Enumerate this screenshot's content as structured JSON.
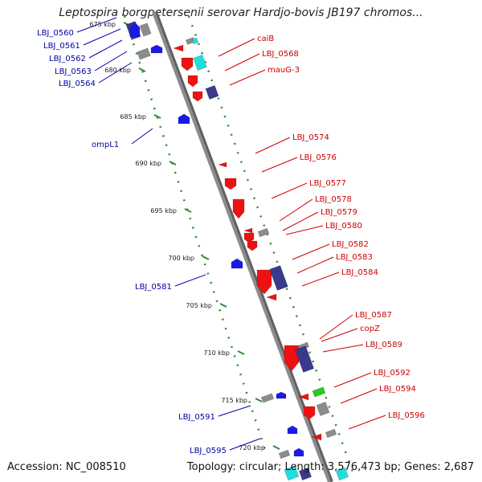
{
  "title": "Leptospira borgpetersenii serovar Hardjo-bovis JB197 chromos...",
  "footer": {
    "accession": "Accession: NC_008510",
    "summary": "Topology: circular; Length: 3,576,473 bp; Genes: 2,687"
  },
  "colors": {
    "backbone": "#8c8c8c",
    "tick_dots": "#2e8b2e",
    "forward_label": "#cc0000",
    "reverse_label": "#0000aa",
    "gene_red": "#ee1111",
    "gene_blue": "#1a1ae6",
    "gene_navy": "#3a3a8c",
    "gene_gray": "#8c8c8c",
    "gene_cyan": "#22dddd",
    "gene_green": "#22cc22"
  },
  "ticks": [
    "675 kbp",
    "680 kbp",
    "685 kbp",
    "690 kbp",
    "695 kbp",
    "700 kbp",
    "705 kbp",
    "710 kbp",
    "715 kbp",
    "720 kbp"
  ],
  "forward_labels": [
    "caiB",
    "LBJ_0568",
    "mauG-3",
    "LBJ_0574",
    "LBJ_0576",
    "LBJ_0577",
    "LBJ_0578",
    "LBJ_0579",
    "LBJ_0580",
    "LBJ_0582",
    "LBJ_0583",
    "LBJ_0584",
    "LBJ_0587",
    "copZ",
    "LBJ_0589",
    "LBJ_0592",
    "LBJ_0594",
    "LBJ_0596"
  ],
  "reverse_labels": [
    "LBJ_0560",
    "LBJ_0561",
    "LBJ_0562",
    "LBJ_0563",
    "LBJ_0564",
    "ompL1",
    "LBJ_0581",
    "LBJ_0591",
    "LBJ_0595"
  ]
}
